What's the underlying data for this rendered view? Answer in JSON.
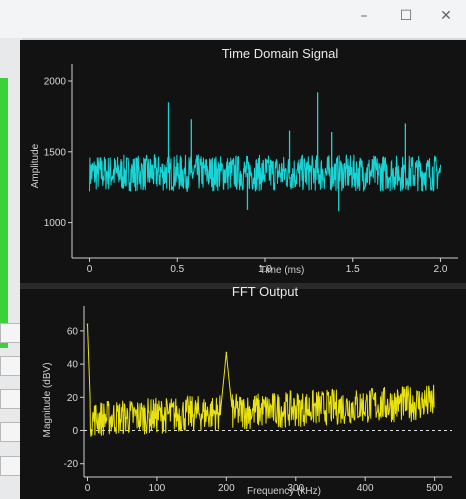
{
  "window": {
    "controls": {
      "minimize": "–",
      "maximize": "☐",
      "close": "✕"
    }
  },
  "colors": {
    "background": "#d7d9da",
    "plot_bg": "#131313",
    "time_trace": "#19d4d4",
    "fft_trace": "#e9e20d",
    "accent_green": "#3bd13b"
  },
  "chart_data": [
    {
      "type": "line",
      "title": "Time Domain Signal",
      "xlabel": "Time (ms)",
      "ylabel": "Amplitude",
      "xlim": [
        -0.1,
        2.1
      ],
      "ylim": [
        750,
        2120
      ],
      "x_ticks": [
        0,
        0.5,
        1.0,
        1.5,
        2.0
      ],
      "x_tick_labels": [
        "0",
        "0.5",
        "1.0",
        "1.5",
        "2.0"
      ],
      "y_ticks": [
        1000,
        1500,
        2000
      ],
      "y_tick_labels": [
        "1000",
        "1500",
        "2000"
      ],
      "series": [
        {
          "x_start": 0,
          "x_end": 2.0,
          "baseline": 1350,
          "noise_amplitude": 130,
          "spikes": [
            {
              "x": 0.45,
              "y": 1850
            },
            {
              "x": 0.58,
              "y": 1730
            },
            {
              "x": 1.14,
              "y": 1650
            },
            {
              "x": 1.3,
              "y": 1920
            },
            {
              "x": 1.38,
              "y": 1640
            },
            {
              "x": 1.8,
              "y": 1700
            },
            {
              "x": 0.9,
              "y": 1090
            },
            {
              "x": 1.42,
              "y": 1080
            }
          ]
        }
      ],
      "grid": false
    },
    {
      "type": "line",
      "title": "FFT Output",
      "xlabel": "Frequency (kHz)",
      "ylabel": "Magnitude (dBV)",
      "xlim": [
        -5,
        525
      ],
      "ylim": [
        -28,
        75
      ],
      "x_ticks": [
        0,
        100,
        200,
        300,
        400,
        500
      ],
      "x_tick_labels": [
        "0",
        "100",
        "200",
        "300",
        "400",
        "500"
      ],
      "y_ticks": [
        -20,
        0,
        20,
        40,
        60
      ],
      "y_tick_labels": [
        "-20",
        "0",
        "20",
        "40",
        "60"
      ],
      "reference_line_y": 0,
      "peaks": [
        {
          "x": 0,
          "y": 64
        },
        {
          "x": 200,
          "y": 47
        }
      ],
      "noise_floor_start": 7,
      "noise_floor_end": 17,
      "grid": false
    }
  ]
}
